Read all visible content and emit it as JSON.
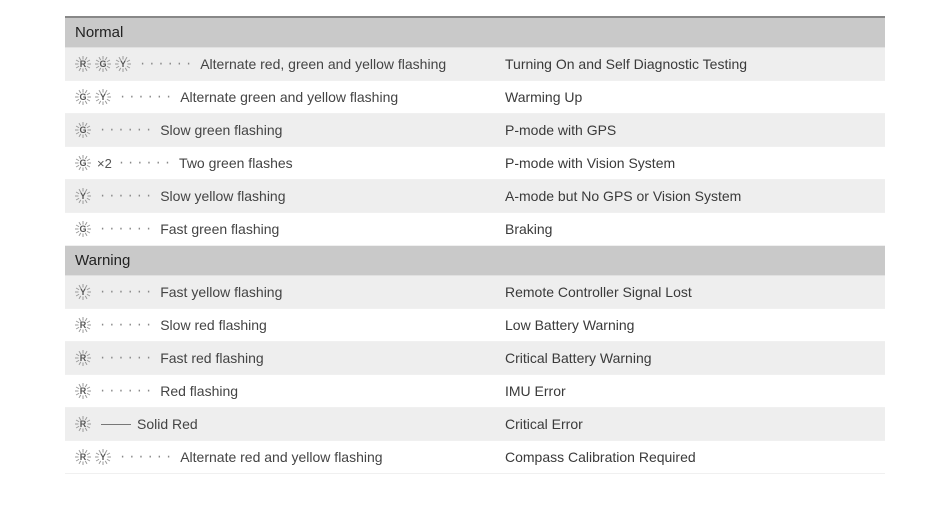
{
  "colors": {
    "section_header_bg": "#c9c9c9",
    "row_alt_bg": "#eeeeee",
    "row_plain_bg": "#ffffff",
    "border_top": "#888888",
    "text": "#3a3a3a",
    "led_burst_stroke": "#9a9a9a",
    "led_letter_color": "#555555",
    "connector_color": "#888888"
  },
  "led_glyphs": {
    "R": "R",
    "G": "G",
    "Y": "Y"
  },
  "connectors": {
    "dots": "······",
    "solid": "—"
  },
  "sections": [
    {
      "title": "Normal",
      "rows": [
        {
          "leds": [
            "R",
            "G",
            "Y"
          ],
          "multiplier": "",
          "connector": "dots",
          "pattern": "Alternate red, green and yellow flashing",
          "meaning": "Turning On and Self Diagnostic Testing",
          "alt": true
        },
        {
          "leds": [
            "G",
            "Y"
          ],
          "multiplier": "",
          "connector": "dots",
          "pattern": "Alternate green and yellow flashing",
          "meaning": "Warming Up",
          "alt": false
        },
        {
          "leds": [
            "G"
          ],
          "multiplier": "",
          "connector": "dots",
          "pattern": "Slow green flashing",
          "meaning": "P-mode with GPS",
          "alt": true
        },
        {
          "leds": [
            "G"
          ],
          "multiplier": "×2",
          "connector": "dots",
          "pattern": "Two green flashes",
          "meaning": "P-mode with Vision System",
          "alt": false
        },
        {
          "leds": [
            "Y"
          ],
          "multiplier": "",
          "connector": "dots",
          "pattern": "Slow yellow flashing",
          "meaning": "A-mode but No GPS or Vision System",
          "alt": true
        },
        {
          "leds": [
            "G"
          ],
          "multiplier": "",
          "connector": "dots",
          "pattern": "Fast green flashing",
          "meaning": "Braking",
          "alt": false
        }
      ]
    },
    {
      "title": "Warning",
      "rows": [
        {
          "leds": [
            "Y"
          ],
          "multiplier": "",
          "connector": "dots",
          "pattern": "Fast yellow flashing",
          "meaning": "Remote Controller Signal Lost",
          "alt": true
        },
        {
          "leds": [
            "R"
          ],
          "multiplier": "",
          "connector": "dots",
          "pattern": "Slow red flashing",
          "meaning": "Low Battery Warning",
          "alt": false
        },
        {
          "leds": [
            "R"
          ],
          "multiplier": "",
          "connector": "dots",
          "pattern": "Fast red flashing",
          "meaning": "Critical Battery Warning",
          "alt": true
        },
        {
          "leds": [
            "R"
          ],
          "multiplier": "",
          "connector": "dots",
          "pattern": "Red flashing",
          "meaning": "IMU Error",
          "alt": false
        },
        {
          "leds": [
            "R"
          ],
          "multiplier": "",
          "connector": "solid",
          "pattern": "Solid Red",
          "meaning": "Critical Error",
          "alt": true
        },
        {
          "leds": [
            "R",
            "Y"
          ],
          "multiplier": "",
          "connector": "dots",
          "pattern": "Alternate red and yellow flashing",
          "meaning": "Compass Calibration Required",
          "alt": false
        }
      ]
    }
  ]
}
